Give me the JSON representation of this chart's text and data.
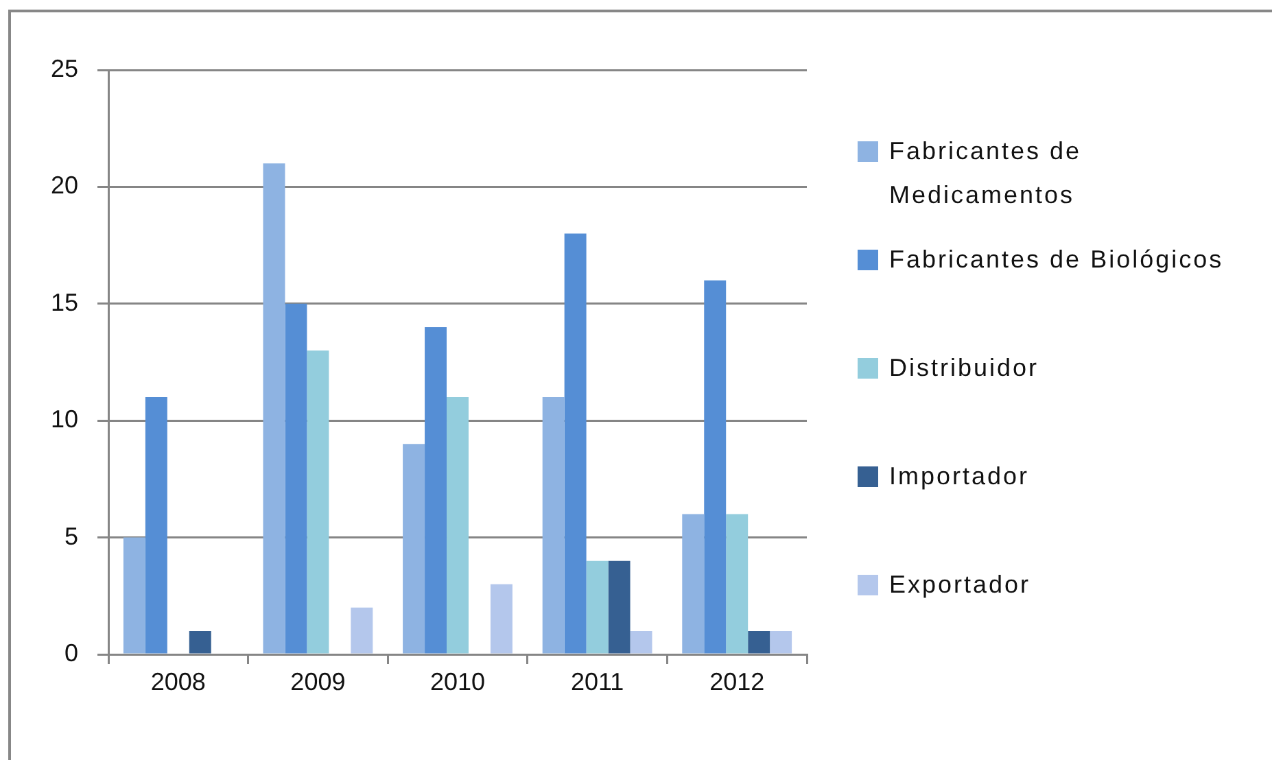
{
  "chart_data": {
    "type": "bar",
    "categories": [
      "2008",
      "2009",
      "2010",
      "2011",
      "2012"
    ],
    "series": [
      {
        "name": "Fabricantes de Medicamentos",
        "color": "#8eb3e2",
        "values": [
          5,
          21,
          9,
          11,
          6
        ]
      },
      {
        "name": "Fabricantes de Biológicos",
        "color": "#558ed5",
        "values": [
          11,
          15,
          14,
          18,
          16
        ]
      },
      {
        "name": "Distribuidor",
        "color": "#93cddd",
        "values": [
          0,
          13,
          11,
          4,
          6
        ]
      },
      {
        "name": "Importador",
        "color": "#366092",
        "values": [
          1,
          0,
          0,
          4,
          1
        ]
      },
      {
        "name": "Exportador",
        "color": "#b4c7ec",
        "values": [
          0,
          2,
          3,
          1,
          1
        ]
      }
    ],
    "ylim": [
      0,
      25
    ],
    "yticks": [
      0,
      5,
      10,
      15,
      20,
      25
    ],
    "grid": "y",
    "legend": "right"
  }
}
